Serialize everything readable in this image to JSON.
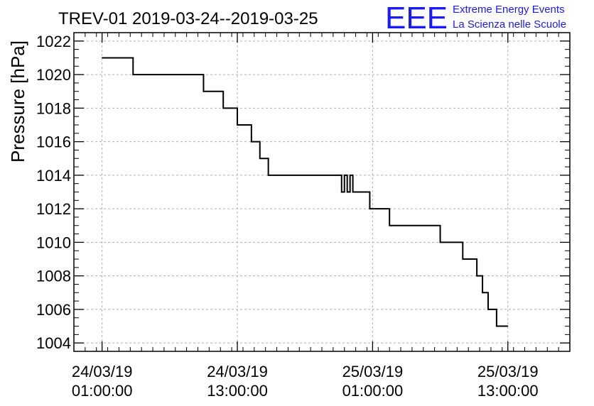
{
  "logo": {
    "mark": "EEE",
    "line1": "Extreme Energy Events",
    "line2": "La Scienza nelle Scuole",
    "color": "#1a1aff"
  },
  "chart_data": {
    "type": "line",
    "title": "TREV-01 2019-03-24--2019-03-25",
    "ylabel": "Pressure [hPa]",
    "xlabel": "",
    "ylim": [
      1003.5,
      1022.5
    ],
    "yticks": [
      1004,
      1006,
      1008,
      1010,
      1012,
      1014,
      1016,
      1018,
      1020,
      1022
    ],
    "xlim": [
      "2019-03-23T22:30:00",
      "2019-03-25T18:30:00"
    ],
    "xticks": [
      {
        "t": "2019-03-24T01:00:00",
        "date": "24/03/19",
        "time": "01:00:00"
      },
      {
        "t": "2019-03-24T13:00:00",
        "date": "24/03/19",
        "time": "13:00:00"
      },
      {
        "t": "2019-03-25T01:00:00",
        "date": "25/03/19",
        "time": "01:00:00"
      },
      {
        "t": "2019-03-25T13:00:00",
        "date": "25/03/19",
        "time": "13:00:00"
      }
    ],
    "grid": true,
    "line_color": "#000000",
    "series": [
      {
        "step": "post",
        "points": [
          {
            "t": "2019-03-24T01:00:00",
            "y": 1021
          },
          {
            "t": "2019-03-24T03:45:00",
            "y": 1020
          },
          {
            "t": "2019-03-24T10:00:00",
            "y": 1019
          },
          {
            "t": "2019-03-24T11:45:00",
            "y": 1018
          },
          {
            "t": "2019-03-24T13:00:00",
            "y": 1017
          },
          {
            "t": "2019-03-24T14:15:00",
            "y": 1016
          },
          {
            "t": "2019-03-24T15:00:00",
            "y": 1015
          },
          {
            "t": "2019-03-24T15:45:00",
            "y": 1014
          },
          {
            "t": "2019-03-24T22:15:00",
            "y": 1013
          },
          {
            "t": "2019-03-24T22:30:00",
            "y": 1014
          },
          {
            "t": "2019-03-24T22:45:00",
            "y": 1013
          },
          {
            "t": "2019-03-24T23:00:00",
            "y": 1014
          },
          {
            "t": "2019-03-24T23:15:00",
            "y": 1013
          },
          {
            "t": "2019-03-25T00:45:00",
            "y": 1012
          },
          {
            "t": "2019-03-25T02:30:00",
            "y": 1011
          },
          {
            "t": "2019-03-25T07:00:00",
            "y": 1010
          },
          {
            "t": "2019-03-25T09:00:00",
            "y": 1009
          },
          {
            "t": "2019-03-25T10:15:00",
            "y": 1008
          },
          {
            "t": "2019-03-25T10:45:00",
            "y": 1007
          },
          {
            "t": "2019-03-25T11:15:00",
            "y": 1006
          },
          {
            "t": "2019-03-25T12:00:00",
            "y": 1005
          },
          {
            "t": "2019-03-25T13:00:00",
            "y": 1005
          }
        ]
      }
    ]
  }
}
